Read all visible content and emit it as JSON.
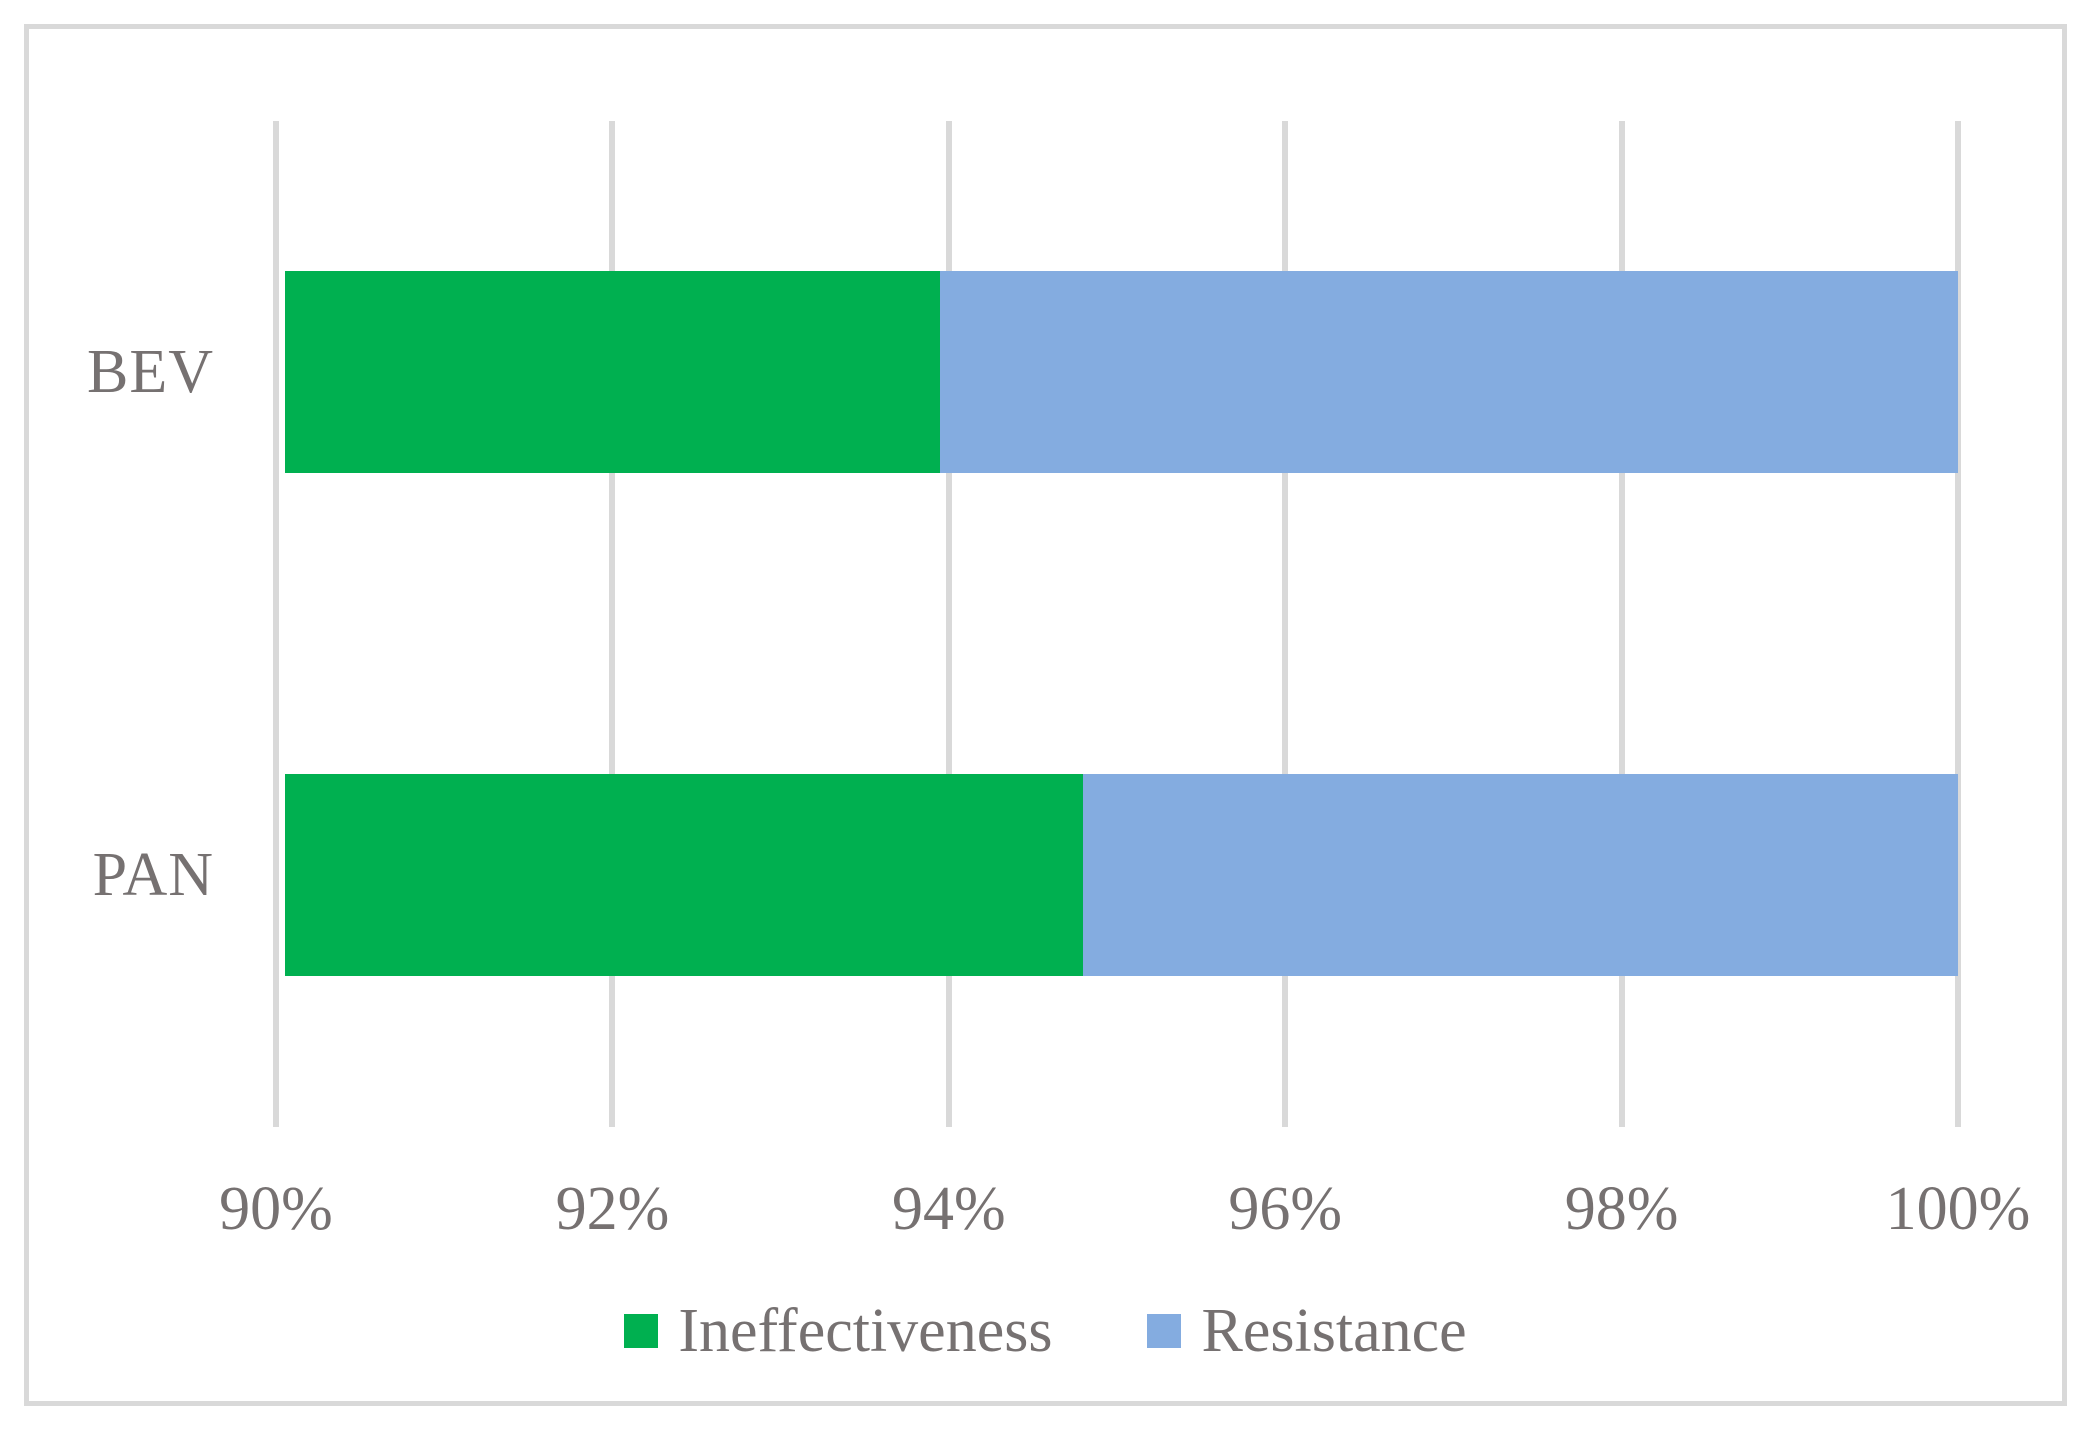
{
  "chart_data": {
    "type": "bar",
    "orientation": "horizontal",
    "stacked": true,
    "title": "",
    "xlabel": "",
    "ylabel": "",
    "categories": [
      "BEV",
      "PAN"
    ],
    "series": [
      {
        "name": "Ineffectiveness",
        "color": "#00B050",
        "values": [
          93.95,
          94.8
        ]
      },
      {
        "name": "Resistance",
        "color": "#84ACE0",
        "values": [
          6.05,
          5.2
        ]
      }
    ],
    "xlim": [
      90,
      100
    ],
    "x_tick_values": [
      90,
      92,
      94,
      96,
      98,
      100
    ],
    "x_tick_labels": [
      "90%",
      "92%",
      "94%",
      "96%",
      "98%",
      "100%"
    ],
    "grid": "vertical-major",
    "legend_position": "bottom",
    "legend_labels": [
      "Ineffectiveness",
      "Resistance"
    ]
  },
  "styles": {
    "background": "#FFFFFF",
    "frame_border_color": "#D9D9D9",
    "gridline_color": "#D9D9D9",
    "axis_text_color": "#767171",
    "ineffectiveness_color": "#00B050",
    "resistance_color": "#84ACE0"
  }
}
